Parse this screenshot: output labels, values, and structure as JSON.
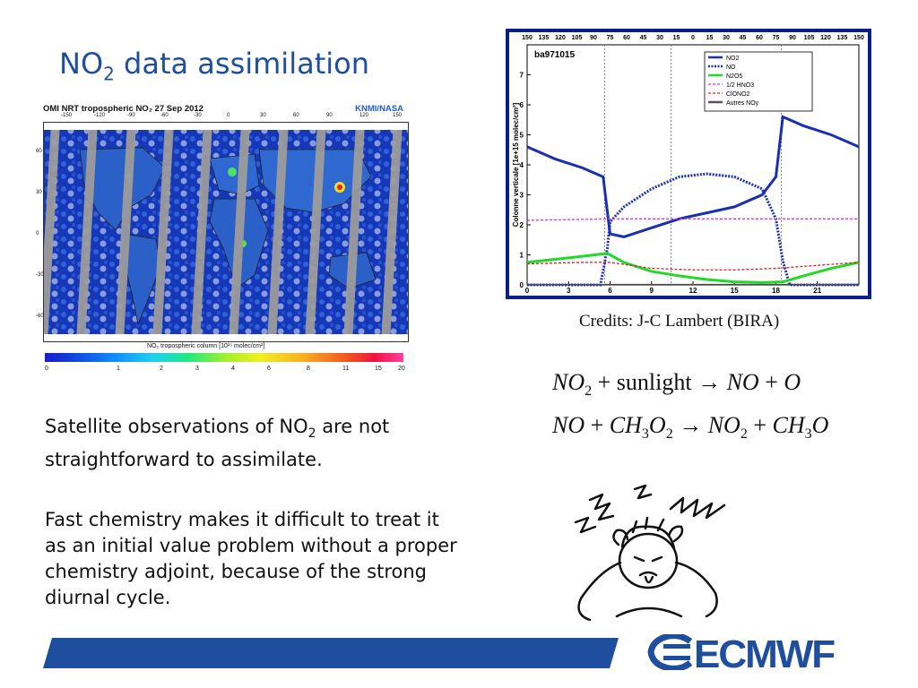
{
  "slide": {
    "title_main": "NO",
    "title_sub": "2",
    "title_rest": " data assimilation"
  },
  "map": {
    "header_left": "OMI NRT tropospheric NO₂  27 Sep 2012",
    "header_right": "KNMI/NASA",
    "lon_ticks": [
      "-150",
      "-120",
      "-90",
      "-60",
      "-30",
      "0",
      "30",
      "60",
      "90",
      "120",
      "150"
    ],
    "lat_ticks": [
      "60",
      "30",
      "0",
      "-30",
      "-60"
    ],
    "axis_label": "NO₂ tropospheric column [10¹⁵ molec/cm²]",
    "colorbar_ticks": [
      "0",
      "1",
      "2",
      "3",
      "4",
      "6",
      "8",
      "11",
      "15",
      "20"
    ]
  },
  "chart_data": {
    "type": "line",
    "title": "ba971015",
    "ylabel": "Colonne verticale [1e+15 molec/cm²]",
    "xlim": [
      0,
      24
    ],
    "ylim": [
      0,
      8
    ],
    "x_ticks": [
      "0",
      "3",
      "6",
      "9",
      "12",
      "15",
      "18",
      "21"
    ],
    "y_ticks": [
      "0",
      "1",
      "2",
      "3",
      "4",
      "5",
      "6",
      "7"
    ],
    "top_ticks": [
      "150",
      "135",
      "120",
      "105",
      "90",
      "75",
      "60",
      "45",
      "30",
      "15",
      "0",
      "15",
      "30",
      "45",
      "60",
      "75",
      "90",
      "105",
      "120",
      "135",
      "150"
    ],
    "legend_position": "top-right",
    "series": [
      {
        "name": "NO2",
        "color": "#1a2fb0",
        "style": "solid",
        "x": [
          0,
          2,
          4,
          5.5,
          6,
          7,
          9,
          11,
          13,
          15,
          17,
          18,
          18.5,
          20,
          22,
          24
        ],
        "y": [
          4.6,
          4.2,
          3.9,
          3.6,
          1.7,
          1.6,
          1.9,
          2.2,
          2.4,
          2.6,
          3.0,
          3.6,
          5.6,
          5.3,
          5.0,
          4.6
        ]
      },
      {
        "name": "NO",
        "color": "#1a2fb0",
        "style": "dotted",
        "x": [
          0,
          5.3,
          5.8,
          6,
          7,
          9,
          11,
          13,
          15,
          17,
          18,
          18.5,
          19,
          24
        ],
        "y": [
          0,
          0,
          1.2,
          2.1,
          2.6,
          3.2,
          3.6,
          3.7,
          3.6,
          3.2,
          2.2,
          0.8,
          0,
          0
        ]
      },
      {
        "name": "N2O5",
        "color": "#22d82a",
        "style": "solid",
        "x": [
          0,
          2,
          4,
          5.8,
          7,
          9,
          11,
          13,
          15,
          17,
          18.5,
          20,
          22,
          24
        ],
        "y": [
          0.75,
          0.85,
          0.95,
          1.05,
          0.75,
          0.45,
          0.3,
          0.18,
          0.1,
          0.08,
          0.1,
          0.3,
          0.55,
          0.75
        ]
      },
      {
        "name": "1/2 HNO3",
        "color": "#e030e0",
        "style": "dashed",
        "x": [
          0,
          6,
          12,
          18,
          24
        ],
        "y": [
          2.15,
          2.2,
          2.2,
          2.2,
          2.2
        ]
      },
      {
        "name": "ClONO2",
        "color": "#d42020",
        "style": "dashed",
        "x": [
          0,
          4,
          6,
          9,
          12,
          15,
          18,
          21,
          24
        ],
        "y": [
          0.7,
          0.75,
          0.75,
          0.55,
          0.5,
          0.5,
          0.55,
          0.65,
          0.75
        ]
      },
      {
        "name": "Autres NOy",
        "color": "#555555",
        "style": "solid",
        "x": [
          0,
          24
        ],
        "y": [
          0.02,
          0.02
        ]
      }
    ],
    "vlines": [
      5.6,
      10.4,
      18.4
    ]
  },
  "credits": "Credits: J-C Lambert (BIRA)",
  "equations": {
    "eq1": {
      "a": "NO",
      "a_sub": "2",
      "plus1": "+",
      "b": "sunlight",
      "arrow": "→",
      "c": "NO",
      "plus2": "+",
      "d": "O"
    },
    "eq2": {
      "a": "NO",
      "plus1": "+",
      "b": "CH",
      "b_sub1": "3",
      "b2": "O",
      "b_sub2": "2",
      "arrow": "→",
      "c": "NO",
      "c_sub": "2",
      "plus2": "+",
      "d": "CH",
      "d_sub": "3",
      "d2": "O"
    }
  },
  "body": {
    "p1_a": "Satellite observations of NO",
    "p1_sub": "2",
    "p1_b": " are not straightforward to assimilate.",
    "p2": "Fast chemistry makes it difficult to treat it as an initial value problem without a proper chemistry adjoint, because of the strong diurnal cycle."
  },
  "footer": {
    "logo": "ECMWF",
    "bar_color": "#1f4e9e"
  }
}
